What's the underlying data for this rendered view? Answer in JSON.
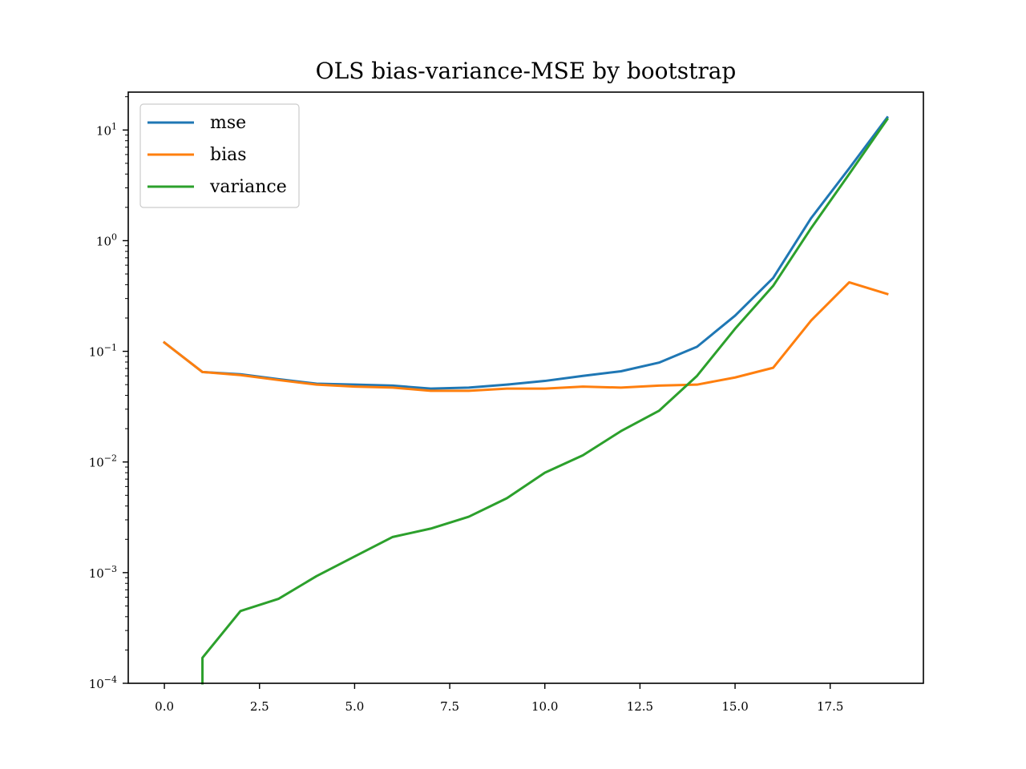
{
  "chart_data": {
    "type": "line",
    "title": "OLS bias-variance-MSE by bootstrap",
    "xlabel": "",
    "ylabel": "",
    "xlim": [
      -0.95,
      19.95
    ],
    "ylim": [
      0.0001,
      22
    ],
    "yscale": "log",
    "grid": false,
    "legend_position": "top-left",
    "x_ticks": [
      {
        "value": 0.0,
        "label": "0.0"
      },
      {
        "value": 2.5,
        "label": "2.5"
      },
      {
        "value": 5.0,
        "label": "5.0"
      },
      {
        "value": 7.5,
        "label": "7.5"
      },
      {
        "value": 10.0,
        "label": "10.0"
      },
      {
        "value": 12.5,
        "label": "12.5"
      },
      {
        "value": 15.0,
        "label": "15.0"
      },
      {
        "value": 17.5,
        "label": "17.5"
      }
    ],
    "y_ticks": [
      {
        "exp": 1,
        "base": "10",
        "sup": "1"
      },
      {
        "exp": 0,
        "base": "10",
        "sup": "0"
      },
      {
        "exp": -1,
        "base": "10",
        "sup": "−1"
      },
      {
        "exp": -2,
        "base": "10",
        "sup": "−2"
      },
      {
        "exp": -3,
        "base": "10",
        "sup": "−3"
      },
      {
        "exp": -4,
        "base": "10",
        "sup": "−4"
      }
    ],
    "series": [
      {
        "name": "mse",
        "color": "#1f77b4",
        "x": [
          0,
          1,
          2,
          3,
          4,
          5,
          6,
          7,
          8,
          9,
          10,
          11,
          12,
          13,
          14,
          15,
          16,
          17,
          18,
          19
        ],
        "values": [
          0.12,
          0.065,
          0.062,
          0.056,
          0.051,
          0.05,
          0.049,
          0.046,
          0.047,
          0.05,
          0.054,
          0.06,
          0.066,
          0.079,
          0.11,
          0.21,
          0.46,
          1.6,
          4.5,
          13.0
        ]
      },
      {
        "name": "bias",
        "color": "#ff7f0e",
        "x": [
          0,
          1,
          2,
          3,
          4,
          5,
          6,
          7,
          8,
          9,
          10,
          11,
          12,
          13,
          14,
          15,
          16,
          17,
          18,
          19
        ],
        "values": [
          0.12,
          0.065,
          0.061,
          0.055,
          0.05,
          0.048,
          0.047,
          0.044,
          0.044,
          0.046,
          0.046,
          0.048,
          0.047,
          0.049,
          0.05,
          0.058,
          0.071,
          0.19,
          0.42,
          0.33
        ]
      },
      {
        "name": "variance",
        "color": "#2ca02c",
        "x": [
          1,
          1,
          2,
          3,
          4,
          5,
          6,
          7,
          8,
          9,
          10,
          11,
          12,
          13,
          14,
          15,
          16,
          17,
          18,
          19
        ],
        "values": [
          0.0001,
          0.00017,
          0.00045,
          0.00058,
          0.00093,
          0.0014,
          0.0021,
          0.0025,
          0.0032,
          0.0047,
          0.008,
          0.0115,
          0.019,
          0.029,
          0.06,
          0.16,
          0.39,
          1.3,
          4.0,
          12.5
        ]
      }
    ]
  }
}
